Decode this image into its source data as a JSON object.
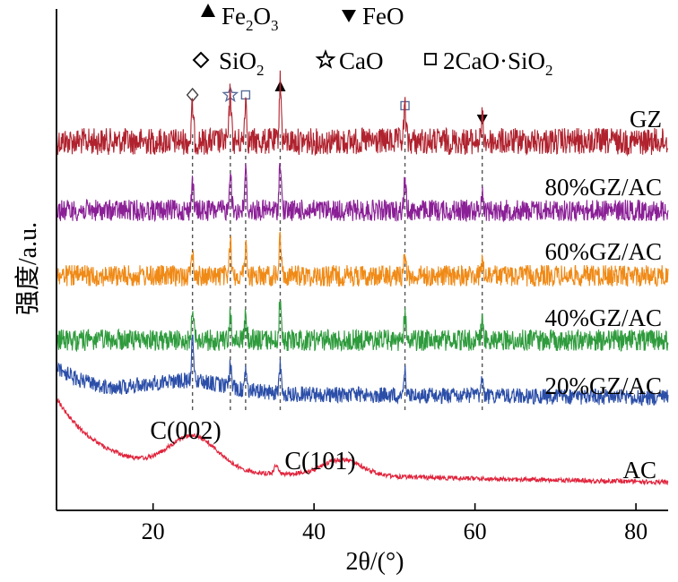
{
  "chart_data": {
    "type": "line",
    "xlabel": "2θ/(°)",
    "ylabel": "强度/a.u.",
    "xlim": [
      8,
      84
    ],
    "x_ticks": [
      20,
      40,
      60,
      80
    ],
    "grid": false,
    "legend": {
      "placement": "top",
      "entries": [
        {
          "marker": "filled-triangle-up",
          "label": "Fe2O3"
        },
        {
          "marker": "filled-triangle-down",
          "label": "FeO"
        },
        {
          "marker": "diamond",
          "label": "SiO2"
        },
        {
          "marker": "star",
          "label": "CaO"
        },
        {
          "marker": "square",
          "label": "2CaO·SiO2"
        }
      ]
    },
    "peak_markers": [
      {
        "marker": "diamond",
        "x": 24.9
      },
      {
        "marker": "star",
        "x": 29.6
      },
      {
        "marker": "square",
        "x": 31.5
      },
      {
        "marker": "filled-triangle-up",
        "x": 35.8
      },
      {
        "marker": "square",
        "x": 51.3
      },
      {
        "marker": "filled-triangle-down",
        "x": 60.9
      }
    ],
    "reference_lines_x": [
      24.9,
      29.6,
      31.5,
      35.8,
      51.3,
      60.9
    ],
    "series": [
      {
        "name": "GZ",
        "color": "#b0222e",
        "offset": 5,
        "peaks": [
          {
            "x": 24.9,
            "h": 0.55
          },
          {
            "x": 29.6,
            "h": 0.8
          },
          {
            "x": 31.5,
            "h": 0.7
          },
          {
            "x": 35.8,
            "h": 0.95
          },
          {
            "x": 51.3,
            "h": 0.55
          },
          {
            "x": 60.9,
            "h": 0.35
          }
        ]
      },
      {
        "name": "80%GZ/AC",
        "color": "#8a1f96",
        "offset": 4,
        "peaks": [
          {
            "x": 24.9,
            "h": 0.5
          },
          {
            "x": 29.6,
            "h": 0.7
          },
          {
            "x": 31.5,
            "h": 0.65
          },
          {
            "x": 35.8,
            "h": 0.85
          },
          {
            "x": 51.3,
            "h": 0.5
          },
          {
            "x": 60.9,
            "h": 0.3
          }
        ]
      },
      {
        "name": "60%GZ/AC",
        "color": "#f08a16",
        "offset": 3,
        "peaks": [
          {
            "x": 24.9,
            "h": 0.45
          },
          {
            "x": 29.6,
            "h": 0.6
          },
          {
            "x": 31.5,
            "h": 0.55
          },
          {
            "x": 35.8,
            "h": 0.7
          },
          {
            "x": 51.3,
            "h": 0.4
          },
          {
            "x": 60.9,
            "h": 0.25
          }
        ]
      },
      {
        "name": "40%GZ/AC",
        "color": "#2e9b3c",
        "offset": 2,
        "peaks": [
          {
            "x": 24.9,
            "h": 0.6
          },
          {
            "x": 29.6,
            "h": 0.45
          },
          {
            "x": 31.5,
            "h": 0.4
          },
          {
            "x": 35.8,
            "h": 0.7
          },
          {
            "x": 51.3,
            "h": 0.45
          },
          {
            "x": 60.9,
            "h": 0.3
          }
        ]
      },
      {
        "name": "20%GZ/AC",
        "color": "#2b4ea8",
        "offset": 1,
        "peaks": [
          {
            "x": 24.9,
            "h": 0.75
          },
          {
            "x": 29.6,
            "h": 0.4
          },
          {
            "x": 31.5,
            "h": 0.35
          },
          {
            "x": 35.8,
            "h": 0.55
          },
          {
            "x": 51.3,
            "h": 0.5
          },
          {
            "x": 60.9,
            "h": 0.3
          }
        ]
      },
      {
        "name": "AC",
        "color": "#e0243c",
        "offset": 0,
        "peaks": [
          {
            "x": 35.3,
            "h": 0.15
          }
        ]
      }
    ],
    "annotations": [
      {
        "text": "C(002)",
        "x": 25.0
      },
      {
        "text": "C(101)",
        "x": 43.5
      }
    ]
  }
}
